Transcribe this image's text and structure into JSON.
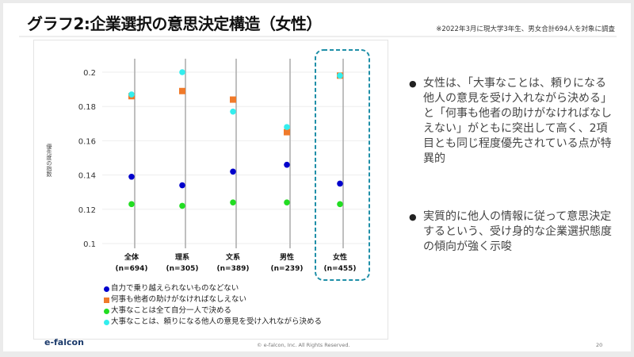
{
  "header": {
    "title": "グラフ2:企業選択の意思決定構造（女性）",
    "note": "※2022年3月に現大学3年生、男女合計694人を対象に調査"
  },
  "chart_data": {
    "type": "scatter",
    "title": "",
    "xlabel": "",
    "ylabel": "優先度の指数",
    "ylim": [
      0.1,
      0.2
    ],
    "yticks": [
      "0.1",
      "0.12",
      "0.14",
      "0.16",
      "0.18",
      "0.2"
    ],
    "grid": true,
    "categories": [
      {
        "label": "全体",
        "n": "(n=694)"
      },
      {
        "label": "理系",
        "n": "(n=305)"
      },
      {
        "label": "文系",
        "n": "(n=389)"
      },
      {
        "label": "男性",
        "n": "(n=239)"
      },
      {
        "label": "女性",
        "n": "(n=455)"
      }
    ],
    "highlighted_category": "女性",
    "legend_position": "bottom-left",
    "series": [
      {
        "name": "自力で乗り越えられないものなどない",
        "marker": "circle",
        "color": "#0000cc",
        "values": [
          0.139,
          0.134,
          0.142,
          0.146,
          0.135
        ]
      },
      {
        "name": "何事も他者の助けがなければなしえない",
        "marker": "square",
        "color": "#f07a2a",
        "values": [
          0.186,
          0.189,
          0.184,
          0.165,
          0.198
        ]
      },
      {
        "name": "大事なことは全て自分一人で決める",
        "marker": "circle",
        "color": "#22dd22",
        "values": [
          0.123,
          0.122,
          0.124,
          0.124,
          0.123
        ]
      },
      {
        "name": "大事なことは、頼りになる他人の意見を受け入れながら決める",
        "marker": "circle",
        "color": "#33eeee",
        "values": [
          0.187,
          0.2,
          0.177,
          0.168,
          0.198
        ]
      }
    ]
  },
  "bullets": [
    "女性は、「大事なことは、頼りになる他人の意見を受け入れながら決める」と「何事も他者の助けがなければなしえない」がともに突出して高く、2項目とも同じ程度優先されている点が特異的",
    "実質的に他人の情報に従って意思決定するという、受け身的な企業選択態度の傾向が強く示唆"
  ],
  "footer": {
    "logo": "e-falcon",
    "copyright": "© e-falcon, Inc. All Rights Reserved.",
    "page": "20"
  },
  "colors": {
    "highlight": "#1f8fa8",
    "grid": "#eeeeee",
    "stem": "#aaaaaa"
  }
}
